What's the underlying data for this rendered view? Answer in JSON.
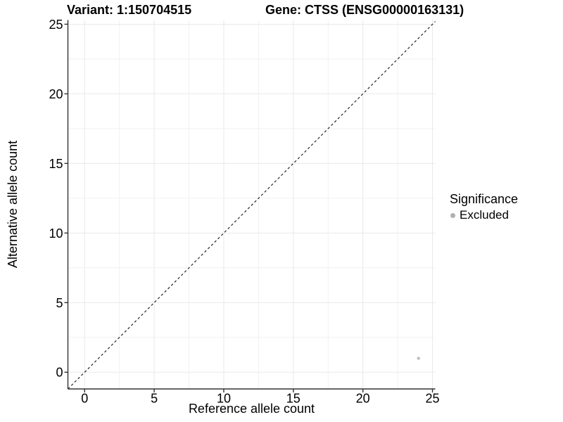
{
  "chart_data": {
    "type": "scatter",
    "title_left": "Variant: 1:150704515",
    "title_right": "Gene: CTSS (ENSG00000163131)",
    "xlabel": "Reference allele count",
    "ylabel": "Alternative allele count",
    "x_ticks": [
      0,
      5,
      10,
      15,
      20,
      25
    ],
    "y_ticks": [
      0,
      5,
      10,
      15,
      20,
      25
    ],
    "xlim": [
      -1.2,
      25.2
    ],
    "ylim": [
      -1.2,
      25.3
    ],
    "grid": {
      "show": true,
      "major_every": 5,
      "minor_every": 2.5,
      "major_color": "#e9e9e9",
      "minor_color": "#f1f1f1"
    },
    "reference_line": {
      "type": "identity",
      "equation": "y = x",
      "style": "dashed",
      "color": "#151515"
    },
    "series": [
      {
        "name": "Excluded",
        "color": "#bdbdbd",
        "point_radius": 2.2,
        "points": [
          {
            "x": 24,
            "y": 1
          }
        ]
      }
    ],
    "legend": {
      "position": "right",
      "title": "Significance",
      "items": [
        {
          "label": "Excluded",
          "color": "#b0b0b0"
        }
      ]
    },
    "axis_color": "#333333",
    "text_color": "#000000",
    "background": "#ffffff"
  }
}
